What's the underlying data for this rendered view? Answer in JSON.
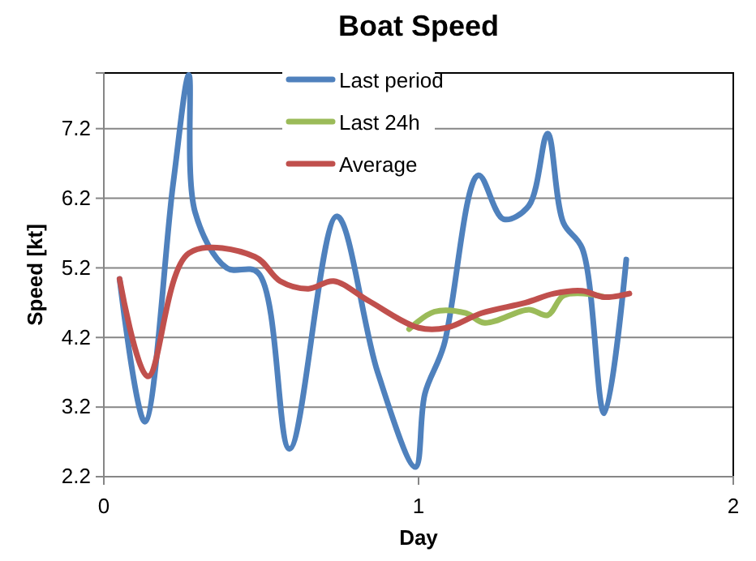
{
  "chart_data": {
    "type": "line",
    "title": "Boat Speed",
    "xlabel": "Day",
    "ylabel": "Speed [kt]",
    "xlim": [
      0,
      2
    ],
    "xticks": [
      0,
      1,
      2
    ],
    "ylim": [
      2.2,
      8.0
    ],
    "yticks": [
      2.2,
      3.2,
      4.2,
      5.2,
      6.2,
      7.2
    ],
    "grid": "y",
    "legend": "top",
    "marker": "none",
    "line_style": "solid",
    "series": [
      {
        "name": "Last period",
        "color": "#4f81bd",
        "x": [
          0.05,
          0.13,
          0.22,
          0.27,
          0.29,
          0.39,
          0.49,
          0.59,
          0.74,
          0.87,
          0.99,
          1.02,
          1.08,
          1.19,
          1.27,
          1.35,
          1.41,
          1.46,
          1.52,
          1.59,
          1.66
        ],
        "values": [
          5.04,
          2.99,
          6.4,
          7.97,
          6.0,
          5.2,
          5.13,
          2.6,
          5.94,
          3.7,
          2.34,
          3.39,
          4.08,
          6.53,
          5.9,
          6.09,
          7.13,
          5.85,
          5.48,
          3.11,
          5.32
        ]
      },
      {
        "name": "Last 24h",
        "color": "#9bbb59",
        "x": [
          0.97,
          1.05,
          1.15,
          1.21,
          1.35,
          1.41,
          1.46,
          1.53,
          1.59
        ],
        "values": [
          4.32,
          4.57,
          4.55,
          4.41,
          4.6,
          4.52,
          4.8,
          4.83,
          4.78
        ]
      },
      {
        "name": "Average",
        "color": "#c0504d",
        "x": [
          0.05,
          0.14,
          0.27,
          0.48,
          0.56,
          0.65,
          0.73,
          0.84,
          1.0,
          1.09,
          1.2,
          1.34,
          1.43,
          1.52,
          1.59,
          1.67
        ],
        "values": [
          5.04,
          3.64,
          5.41,
          5.36,
          5.01,
          4.9,
          5.01,
          4.73,
          4.34,
          4.34,
          4.55,
          4.7,
          4.83,
          4.87,
          4.78,
          4.83
        ]
      }
    ]
  }
}
